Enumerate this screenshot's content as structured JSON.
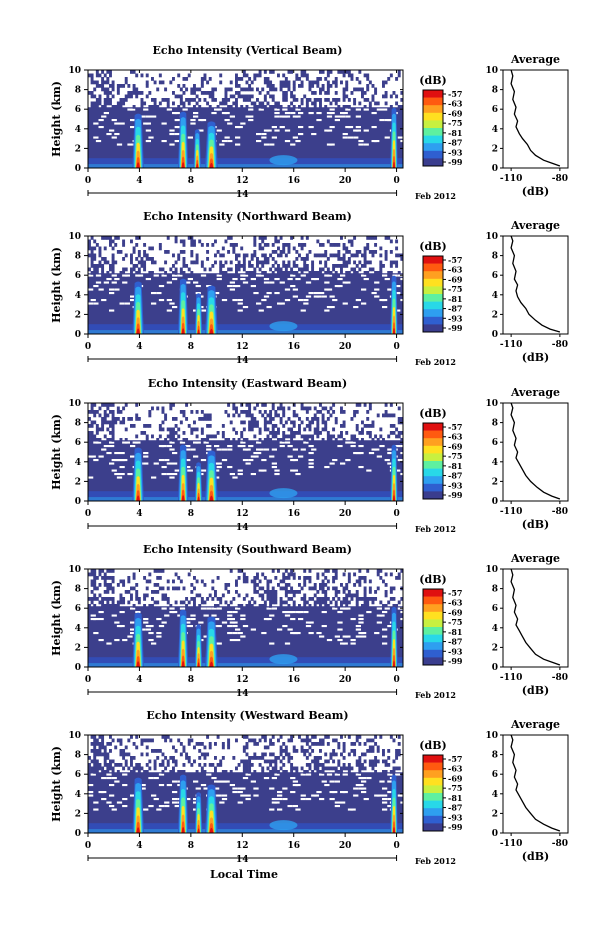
{
  "figure": {
    "xlabel_bottom": "Local Time",
    "date_label": "Feb 2012",
    "day_label": "14"
  },
  "colorbar": {
    "unit": "(dB)",
    "ticks": [
      "-57",
      "-63",
      "-69",
      "-75",
      "-81",
      "-87",
      "-93",
      "-99"
    ],
    "colors": [
      "#3a3d8e",
      "#2f5fd0",
      "#2e9ff0",
      "#28d8e8",
      "#5ef0a0",
      "#c8f040",
      "#ffe020",
      "#ffa020",
      "#ff5a10",
      "#e01010"
    ]
  },
  "chart_data": [
    {
      "type": "heatmap",
      "title": "Echo Intensity (Vertical Beam)",
      "ylabel": "Height (km)",
      "xlim": [
        0,
        24.5
      ],
      "ylim": [
        0,
        10
      ],
      "xticks": [
        0,
        4,
        8,
        12,
        16,
        20,
        24
      ],
      "yticks": [
        0,
        2,
        4,
        6,
        8,
        10
      ],
      "precip_events": [
        {
          "t": 3.9,
          "top": 5.4,
          "width": 0.45
        },
        {
          "t": 7.4,
          "top": 5.6,
          "width": 0.4
        },
        {
          "t": 8.5,
          "top": 3.8,
          "width": 0.3
        },
        {
          "t": 9.6,
          "top": 4.6,
          "width": 0.5
        },
        {
          "t": 23.8,
          "top": 6.0,
          "width": 0.3
        }
      ],
      "average": {
        "title": "Average",
        "xlabel": "(dB)",
        "xlim": [
          -115,
          -75
        ],
        "ylim": [
          0,
          10
        ],
        "xticks": [
          -110,
          -80
        ],
        "yticks": [
          0,
          2,
          4,
          6,
          8,
          10
        ],
        "profile": [
          [
            -80,
            0.2
          ],
          [
            -85,
            0.5
          ],
          [
            -90,
            0.8
          ],
          [
            -95,
            1.3
          ],
          [
            -98,
            1.8
          ],
          [
            -100,
            2.4
          ],
          [
            -103,
            3.0
          ],
          [
            -105,
            3.5
          ],
          [
            -107,
            4.2
          ],
          [
            -106,
            4.8
          ],
          [
            -108,
            5.5
          ],
          [
            -107,
            6.2
          ],
          [
            -109,
            7.0
          ],
          [
            -108,
            7.8
          ],
          [
            -110,
            8.6
          ],
          [
            -109,
            9.4
          ],
          [
            -110,
            10
          ]
        ]
      }
    },
    {
      "type": "heatmap",
      "title": "Echo Intensity (Northward Beam)",
      "ylabel": "Height (km)",
      "xlim": [
        0,
        24.5
      ],
      "ylim": [
        0,
        10
      ],
      "xticks": [
        0,
        4,
        8,
        12,
        16,
        20,
        24
      ],
      "yticks": [
        0,
        2,
        4,
        6,
        8,
        10
      ],
      "precip_events": [
        {
          "t": 3.9,
          "top": 5.2,
          "width": 0.45
        },
        {
          "t": 7.4,
          "top": 5.5,
          "width": 0.4
        },
        {
          "t": 8.6,
          "top": 4.0,
          "width": 0.3
        },
        {
          "t": 9.6,
          "top": 4.8,
          "width": 0.5
        },
        {
          "t": 23.8,
          "top": 5.8,
          "width": 0.3
        }
      ],
      "average": {
        "title": "Average",
        "xlabel": "(dB)",
        "xlim": [
          -115,
          -75
        ],
        "ylim": [
          0,
          10
        ],
        "xticks": [
          -110,
          -80
        ],
        "yticks": [
          0,
          2,
          4,
          6,
          8,
          10
        ],
        "profile": [
          [
            -80,
            0.2
          ],
          [
            -86,
            0.5
          ],
          [
            -91,
            0.9
          ],
          [
            -95,
            1.4
          ],
          [
            -99,
            2.0
          ],
          [
            -101,
            2.6
          ],
          [
            -104,
            3.2
          ],
          [
            -106,
            3.8
          ],
          [
            -107,
            4.4
          ],
          [
            -106,
            5.0
          ],
          [
            -108,
            5.6
          ],
          [
            -107,
            6.4
          ],
          [
            -109,
            7.2
          ],
          [
            -108,
            8.0
          ],
          [
            -110,
            8.8
          ],
          [
            -109,
            9.5
          ],
          [
            -110,
            10
          ]
        ]
      }
    },
    {
      "type": "heatmap",
      "title": "Echo Intensity (Eastward Beam)",
      "ylabel": "Height (km)",
      "xlim": [
        0,
        24.5
      ],
      "ylim": [
        0,
        10
      ],
      "xticks": [
        0,
        4,
        8,
        12,
        16,
        20,
        24
      ],
      "yticks": [
        0,
        2,
        4,
        6,
        8,
        10
      ],
      "precip_events": [
        {
          "t": 3.9,
          "top": 5.3,
          "width": 0.45
        },
        {
          "t": 7.4,
          "top": 5.6,
          "width": 0.4
        },
        {
          "t": 8.6,
          "top": 3.8,
          "width": 0.3
        },
        {
          "t": 9.6,
          "top": 5.0,
          "width": 0.5
        },
        {
          "t": 23.8,
          "top": 5.6,
          "width": 0.3
        }
      ],
      "average": {
        "title": "Average",
        "xlabel": "(dB)",
        "xlim": [
          -115,
          -75
        ],
        "ylim": [
          0,
          10
        ],
        "xticks": [
          -110,
          -80
        ],
        "yticks": [
          0,
          2,
          4,
          6,
          8,
          10
        ],
        "profile": [
          [
            -80,
            0.2
          ],
          [
            -85,
            0.5
          ],
          [
            -90,
            0.9
          ],
          [
            -94,
            1.4
          ],
          [
            -98,
            2.0
          ],
          [
            -101,
            2.6
          ],
          [
            -103,
            3.2
          ],
          [
            -105,
            3.8
          ],
          [
            -107,
            4.4
          ],
          [
            -106,
            5.0
          ],
          [
            -108,
            5.7
          ],
          [
            -107,
            6.4
          ],
          [
            -109,
            7.2
          ],
          [
            -108,
            8.0
          ],
          [
            -110,
            8.8
          ],
          [
            -109,
            9.5
          ],
          [
            -110,
            10
          ]
        ]
      }
    },
    {
      "type": "heatmap",
      "title": "Echo Intensity (Southward Beam)",
      "ylabel": "Height (km)",
      "xlim": [
        0,
        24.5
      ],
      "ylim": [
        0,
        10
      ],
      "xticks": [
        0,
        4,
        8,
        12,
        16,
        20,
        24
      ],
      "yticks": [
        0,
        2,
        4,
        6,
        8,
        10
      ],
      "precip_events": [
        {
          "t": 3.9,
          "top": 5.4,
          "width": 0.45
        },
        {
          "t": 7.4,
          "top": 5.7,
          "width": 0.4
        },
        {
          "t": 8.6,
          "top": 4.2,
          "width": 0.3
        },
        {
          "t": 9.6,
          "top": 5.0,
          "width": 0.5
        },
        {
          "t": 23.8,
          "top": 6.0,
          "width": 0.3
        }
      ],
      "average": {
        "title": "Average",
        "xlabel": "(dB)",
        "xlim": [
          -115,
          -75
        ],
        "ylim": [
          0,
          10
        ],
        "xticks": [
          -110,
          -80
        ],
        "yticks": [
          0,
          2,
          4,
          6,
          8,
          10
        ],
        "profile": [
          [
            -80,
            0.2
          ],
          [
            -85,
            0.5
          ],
          [
            -90,
            0.8
          ],
          [
            -95,
            1.3
          ],
          [
            -98,
            1.9
          ],
          [
            -101,
            2.5
          ],
          [
            -103,
            3.1
          ],
          [
            -105,
            3.7
          ],
          [
            -107,
            4.3
          ],
          [
            -106,
            4.9
          ],
          [
            -108,
            5.6
          ],
          [
            -107,
            6.3
          ],
          [
            -109,
            7.1
          ],
          [
            -108,
            7.9
          ],
          [
            -110,
            8.7
          ],
          [
            -109,
            9.4
          ],
          [
            -110,
            10
          ]
        ]
      }
    },
    {
      "type": "heatmap",
      "title": "Echo Intensity (Westward Beam)",
      "ylabel": "Height (km)",
      "xlim": [
        0,
        24.5
      ],
      "ylim": [
        0,
        10
      ],
      "xticks": [
        0,
        4,
        8,
        12,
        16,
        20,
        24
      ],
      "yticks": [
        0,
        2,
        4,
        6,
        8,
        10
      ],
      "precip_events": [
        {
          "t": 3.9,
          "top": 5.5,
          "width": 0.45
        },
        {
          "t": 7.4,
          "top": 5.8,
          "width": 0.4
        },
        {
          "t": 8.6,
          "top": 4.0,
          "width": 0.3
        },
        {
          "t": 9.6,
          "top": 4.8,
          "width": 0.5
        },
        {
          "t": 23.8,
          "top": 5.8,
          "width": 0.3
        }
      ],
      "average": {
        "title": "Average",
        "xlabel": "(dB)",
        "xlim": [
          -115,
          -75
        ],
        "ylim": [
          0,
          10
        ],
        "xticks": [
          -110,
          -80
        ],
        "yticks": [
          0,
          2,
          4,
          6,
          8,
          10
        ],
        "profile": [
          [
            -80,
            0.2
          ],
          [
            -85,
            0.5
          ],
          [
            -90,
            0.9
          ],
          [
            -95,
            1.4
          ],
          [
            -98,
            2.0
          ],
          [
            -101,
            2.6
          ],
          [
            -103,
            3.2
          ],
          [
            -105,
            3.8
          ],
          [
            -107,
            4.4
          ],
          [
            -106,
            5.0
          ],
          [
            -108,
            5.7
          ],
          [
            -107,
            6.4
          ],
          [
            -109,
            7.2
          ],
          [
            -108,
            8.0
          ],
          [
            -110,
            8.8
          ],
          [
            -109,
            9.5
          ],
          [
            -110,
            10
          ]
        ]
      }
    }
  ]
}
